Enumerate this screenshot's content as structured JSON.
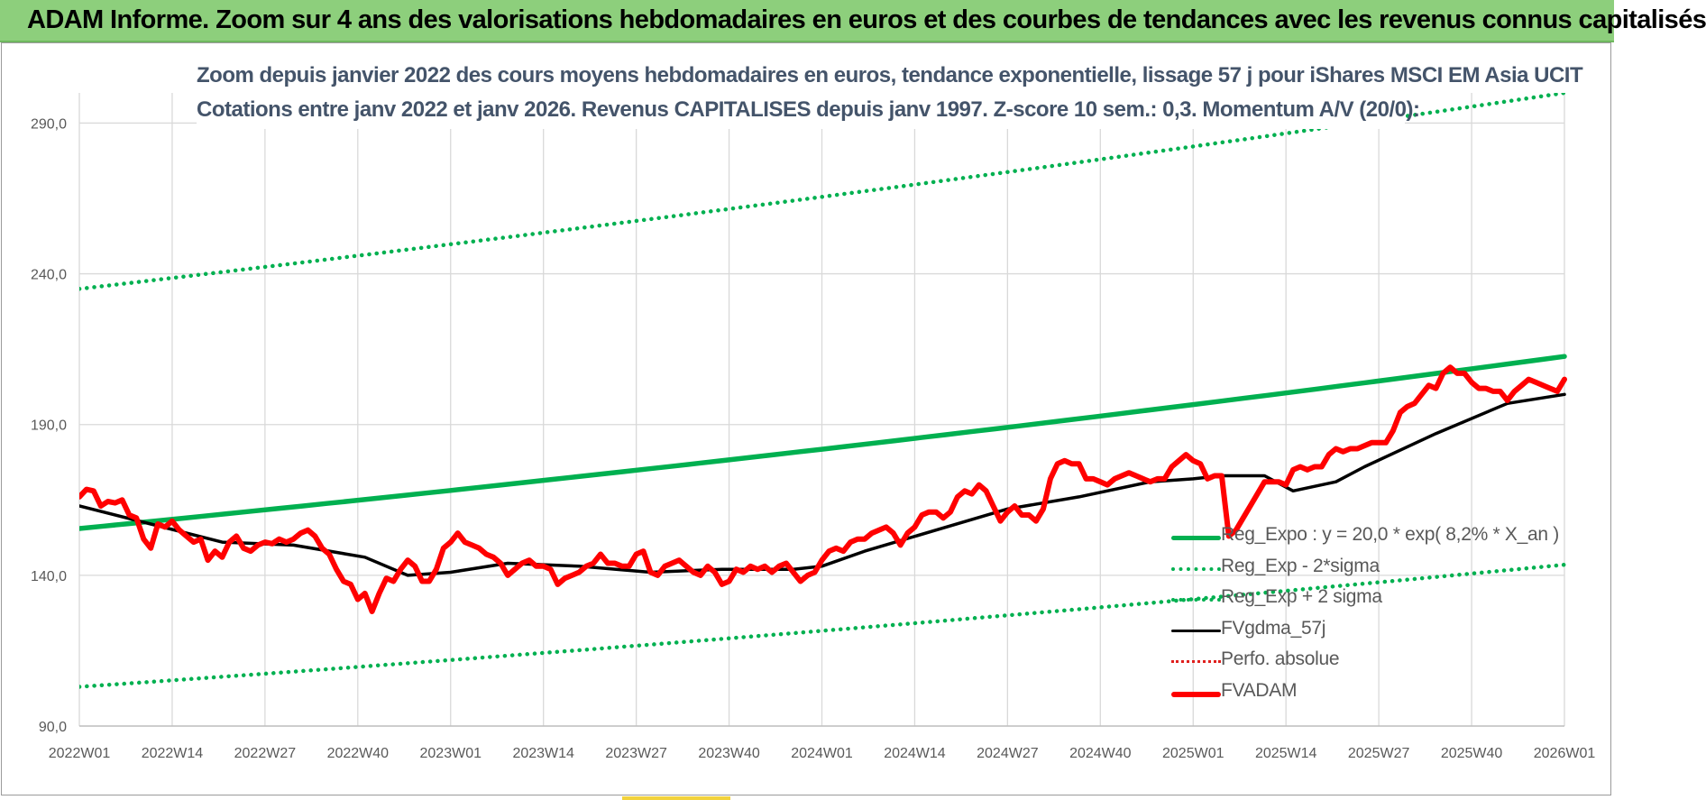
{
  "banner": {
    "title": "ADAM Informe. Zoom sur 4 ans des valorisations hebdomadaires en euros et des courbes de tendances avec les revenus connus capitalisés"
  },
  "colors": {
    "banner_bg": "#8dcf7c",
    "title_text": "#44546a",
    "trend": "#00b050",
    "price": "#ff0000",
    "moving_average": "#000000",
    "perf_absolue": "#e0201e"
  },
  "chart_data": {
    "type": "line",
    "title": "Zoom depuis janvier 2022 des cours moyens hebdomadaires en euros, tendance exponentielle, lissage 57 j pour iShares MSCI EM Asia UCIT",
    "subtitle": "Cotations entre janv 2022 et janv 2026. Revenus CAPITALISES depuis janv 1997. Z-score 10 sem.: 0,3. Momentum A/V (20/0):",
    "x_tick_labels": [
      "2022W01",
      "2022W14",
      "2022W27",
      "2022W40",
      "2023W01",
      "2023W14",
      "2023W27",
      "2023W40",
      "2024W01",
      "2024W14",
      "2024W27",
      "2024W40",
      "2025W01",
      "2025W14",
      "2025W27",
      "2025W40",
      "2026W01"
    ],
    "y_tick_labels": [
      "90,0",
      "140,0",
      "190,0",
      "240,0",
      "290,0"
    ],
    "y_ticks": [
      90,
      140,
      190,
      240,
      290
    ],
    "ylim": [
      90,
      300
    ],
    "x_range_weeks": [
      0,
      208
    ],
    "grid": true,
    "legend_position": "bottom-right",
    "series": [
      {
        "name": "Reg_Expo : y = 20,0 * exp( 8,2% *  X_an )",
        "style": "solid-green",
        "x_weeks": [
          0,
          208
        ],
        "values": [
          155.5,
          212.6
        ]
      },
      {
        "name": "Reg_Exp - 2*sigma",
        "style": "dotted-green",
        "x_weeks": [
          0,
          208
        ],
        "values": [
          103,
          143.5
        ]
      },
      {
        "name": "Reg_Exp + 2 sigma",
        "style": "dotted-green",
        "x_weeks": [
          0,
          208
        ],
        "values": [
          235,
          300
        ]
      },
      {
        "name": "FVgdma_57j",
        "style": "solid-black",
        "x_weeks": [
          0,
          10,
          20,
          30,
          40,
          46,
          52,
          60,
          70,
          80,
          90,
          100,
          104,
          110,
          120,
          130,
          140,
          150,
          156,
          160,
          166,
          170,
          176,
          180,
          190,
          200,
          208
        ],
        "values": [
          163,
          157,
          151,
          150,
          146,
          140,
          141,
          144,
          143,
          141,
          142,
          142,
          143,
          148,
          155,
          162,
          166,
          171,
          172,
          173,
          173,
          168,
          171,
          176,
          187,
          197,
          200
        ]
      },
      {
        "name": "Perfo. absolue",
        "style": "dotted-red",
        "x_weeks": [],
        "values": []
      },
      {
        "name": "FVADAM",
        "style": "thick-red",
        "x_weeks": [
          0,
          1,
          2,
          3,
          4,
          5,
          6,
          7,
          8,
          9,
          10,
          11,
          12,
          13,
          14,
          15,
          16,
          17,
          18,
          19,
          20,
          21,
          22,
          23,
          24,
          25,
          26,
          27,
          28,
          29,
          30,
          31,
          32,
          33,
          34,
          35,
          36,
          37,
          38,
          39,
          40,
          41,
          42,
          43,
          44,
          45,
          46,
          47,
          48,
          49,
          50,
          51,
          52,
          53,
          54,
          55,
          56,
          57,
          58,
          59,
          60,
          61,
          62,
          63,
          64,
          65,
          66,
          67,
          68,
          69,
          70,
          71,
          72,
          73,
          74,
          75,
          76,
          77,
          78,
          79,
          80,
          81,
          82,
          83,
          84,
          85,
          86,
          87,
          88,
          89,
          90,
          91,
          92,
          93,
          94,
          95,
          96,
          97,
          98,
          99,
          100,
          101,
          102,
          103,
          104,
          105,
          106,
          107,
          108,
          109,
          110,
          111,
          112,
          113,
          114,
          115,
          116,
          117,
          118,
          119,
          120,
          121,
          122,
          123,
          124,
          125,
          126,
          127,
          128,
          129,
          130,
          131,
          132,
          133,
          134,
          135,
          136,
          137,
          138,
          139,
          140,
          141,
          142,
          143,
          144,
          145,
          146,
          147,
          148,
          149,
          150,
          151,
          152,
          153,
          154,
          155,
          156,
          157,
          158,
          159,
          160,
          161,
          162,
          163,
          164,
          165,
          166,
          167,
          168,
          169,
          170,
          171,
          172,
          173,
          174,
          175,
          176,
          177,
          178,
          179,
          180,
          181,
          182,
          183,
          184,
          185,
          186,
          187,
          188,
          189,
          190,
          191,
          192,
          193,
          194,
          195,
          196,
          197,
          198,
          199,
          200,
          201,
          202,
          203,
          204,
          205,
          206,
          207,
          208
        ],
        "values": [
          166,
          168.5,
          168,
          163,
          164.5,
          164,
          165,
          160,
          159,
          152,
          149,
          157,
          156,
          158,
          155,
          153,
          151,
          152,
          145,
          148,
          146,
          151,
          153,
          149,
          148,
          150,
          151,
          150.5,
          152,
          151,
          152,
          154,
          155,
          153,
          149,
          147,
          142,
          138,
          137,
          132,
          134,
          128,
          134,
          139,
          138,
          142,
          145,
          143,
          138,
          138,
          142,
          149,
          151,
          154,
          151,
          150,
          149,
          147,
          146,
          144,
          140,
          142,
          144,
          145,
          143,
          143,
          142,
          137,
          139,
          140,
          141,
          143,
          144,
          147,
          144,
          144,
          143,
          143,
          147,
          148,
          141,
          140,
          143,
          144,
          145,
          143,
          141,
          140,
          143,
          141,
          137,
          138,
          142,
          141,
          143,
          142,
          143,
          141,
          143,
          144,
          141,
          138,
          140,
          141,
          145,
          148,
          149,
          148,
          151,
          152,
          152,
          154,
          155,
          156,
          154,
          150,
          154,
          156,
          160,
          161,
          161,
          159,
          161,
          166,
          168,
          167,
          170,
          168,
          163,
          158,
          161,
          163,
          160,
          160,
          158,
          162,
          172,
          177,
          178,
          177,
          177,
          172,
          172,
          171,
          170,
          172,
          173,
          174,
          173,
          172,
          171,
          172,
          172,
          176,
          178,
          180,
          178,
          177,
          172,
          173,
          173,
          153,
          155,
          159,
          163,
          167,
          171,
          171,
          171,
          170,
          175,
          176,
          175,
          176,
          176,
          180,
          182,
          181,
          182,
          182,
          183,
          184,
          184,
          184,
          188,
          194,
          196,
          197,
          200,
          203,
          202,
          207,
          209,
          207,
          207,
          204,
          202,
          202,
          201,
          201,
          198,
          201,
          203,
          205,
          204,
          203,
          202,
          201,
          205
        ]
      }
    ]
  }
}
